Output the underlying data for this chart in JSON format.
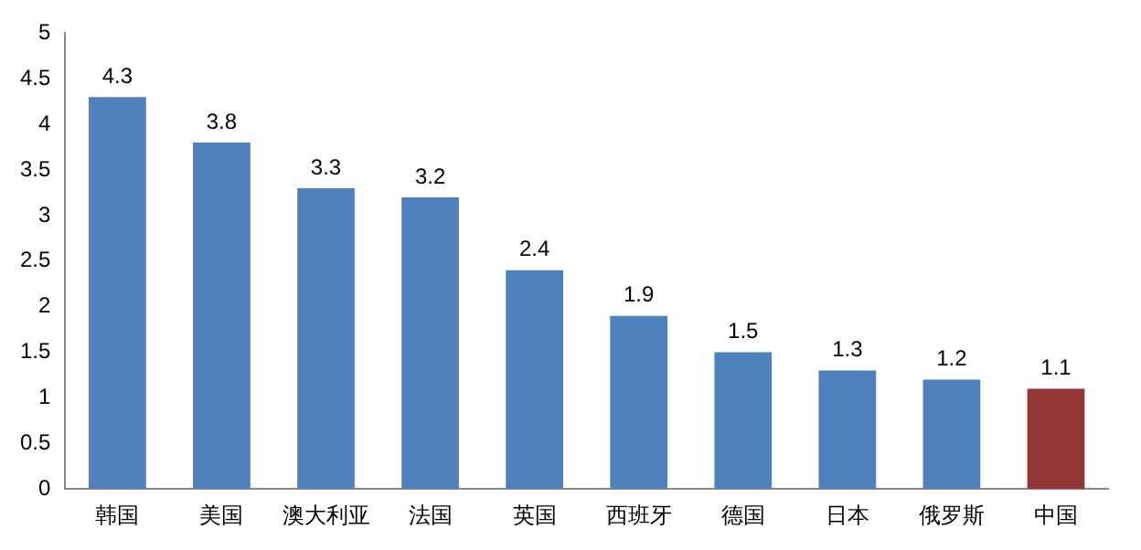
{
  "chart_data": {
    "type": "bar",
    "categories": [
      "韩国",
      "美国",
      "澳大利亚",
      "法国",
      "英国",
      "西班牙",
      "德国",
      "日本",
      "俄罗斯",
      "中国"
    ],
    "values": [
      4.3,
      3.8,
      3.3,
      3.2,
      2.4,
      1.9,
      1.5,
      1.3,
      1.2,
      1.1
    ],
    "colors": [
      "#4f81bd",
      "#4f81bd",
      "#4f81bd",
      "#4f81bd",
      "#4f81bd",
      "#4f81bd",
      "#4f81bd",
      "#4f81bd",
      "#4f81bd",
      "#943634"
    ],
    "ylim": [
      0,
      5
    ],
    "yticks": [
      0,
      0.5,
      1,
      1.5,
      2,
      2.5,
      3,
      3.5,
      4,
      4.5,
      5
    ],
    "grid": false,
    "legend": false,
    "data_labels": true
  }
}
